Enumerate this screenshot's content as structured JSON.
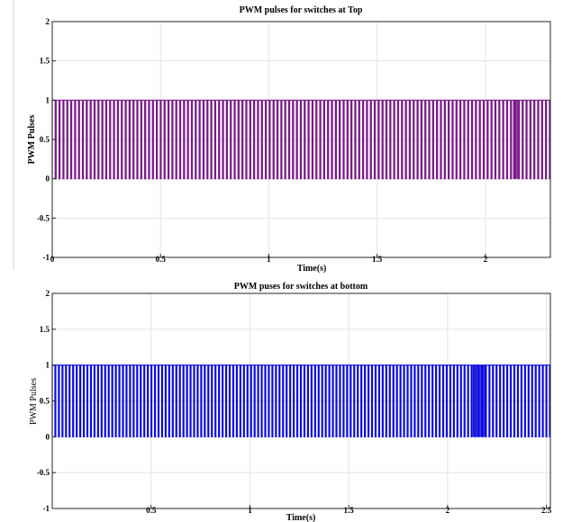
{
  "chart_data": [
    {
      "type": "line",
      "title": "PWM pulses for switches at Top",
      "xlabel": "Time(s)",
      "ylabel": "PWM Pulses",
      "xlim": [
        0,
        2.3
      ],
      "ylim": [
        -1,
        2
      ],
      "xticks": [
        "0",
        "0.5",
        "1",
        "1.5",
        "2"
      ],
      "yticks": [
        "-1",
        "-0.5",
        "0",
        "0.5",
        "1",
        "1.5",
        "2"
      ],
      "grid": true,
      "color": "#7a1a8a",
      "waveform": {
        "low": 0,
        "high": 1,
        "cycles": 128,
        "duty": 0.75,
        "dense_band": [
          2.13,
          2.16
        ]
      }
    },
    {
      "type": "line",
      "title": "PWM puses for switches at bottom",
      "xlabel": "Time(s)",
      "ylabel": "PWM Pulses",
      "xlim": [
        0,
        2.52
      ],
      "ylim": [
        -1,
        2
      ],
      "xticks": [
        "0.5",
        "1",
        "1.5",
        "2",
        "2.5"
      ],
      "yticks": [
        "-1",
        "-0.5",
        "0",
        "0.5",
        "1",
        "1.5",
        "2"
      ],
      "grid": true,
      "color": "#0a0adf",
      "waveform": {
        "low": 0,
        "high": 1,
        "cycles": 140,
        "duty": 0.75,
        "dense_band": [
          2.13,
          2.2
        ]
      }
    }
  ]
}
